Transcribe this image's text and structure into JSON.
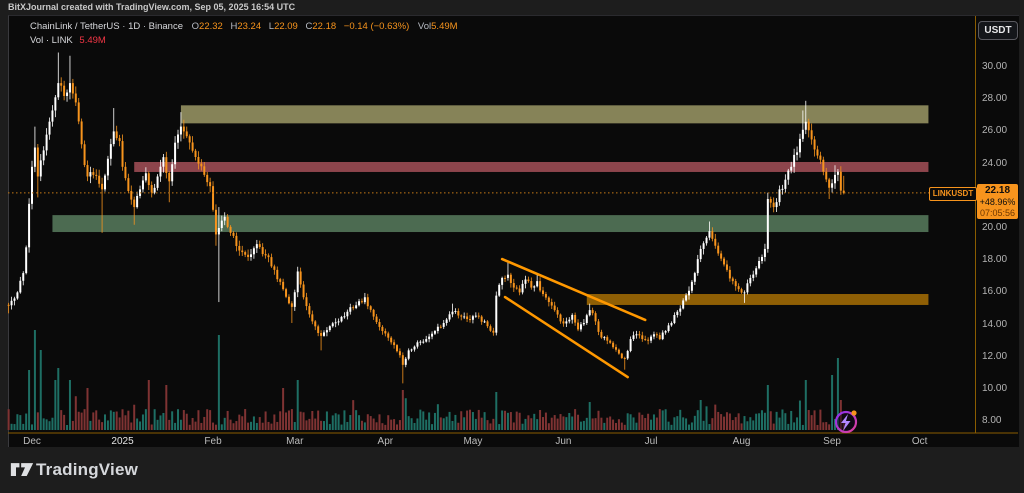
{
  "top_bar": {
    "attribution": "BitXJournal created with TradingView.com, Sep 05, 2025 16:54 UTC"
  },
  "header": {
    "symbol": "ChainLink / TetherUS",
    "separator": "·",
    "interval": "1D",
    "exchange": "Binance",
    "ohlc": {
      "o_label": "O",
      "o": "22.32",
      "h_label": "H",
      "h": "23.24",
      "l_label": "L",
      "l": "22.09",
      "c_label": "C",
      "c": "22.18",
      "change": "−0.14 (−0.63%)",
      "vol_label": "Vol",
      "vol": "5.49M"
    },
    "indicator": {
      "label": "Vol · LINK",
      "value": "5.49M"
    }
  },
  "price_axis": {
    "currency_button": "USDT",
    "last_price": "22.18",
    "change_pct": "+48.96%",
    "countdown": "07:05:56",
    "symbol_tag": "LINKUSDT"
  },
  "footer": {
    "brand": "TradingView"
  },
  "colors": {
    "up_candle": "#ffffff",
    "down_candle": "#f7941d",
    "vol_up": "#1e6f64",
    "vol_down": "#7f3333",
    "zone_olive": "#868358",
    "zone_red": "#8D454C",
    "zone_green": "#4C6B51",
    "zone_orange": "#8F5F05",
    "trendline": "#ff9800",
    "price_line": "#c77b16",
    "axis_line": "#8a5c00",
    "label_bg": "#f7941d"
  },
  "chart_data": {
    "type": "candlestick",
    "symbol": "LINKUSDT",
    "exchange": "Binance",
    "interval": "1D",
    "current_price": 22.18,
    "ylim": [
      7.5,
      31.5
    ],
    "grid": false,
    "price_ticks": [
      {
        "p": 30,
        "t": "30.00"
      },
      {
        "p": 28,
        "t": "28.00"
      },
      {
        "p": 26,
        "t": "26.00"
      },
      {
        "p": 24,
        "t": "24.00"
      },
      {
        "p": 20,
        "t": "20.00"
      },
      {
        "p": 18,
        "t": "18.00"
      },
      {
        "p": 16,
        "t": "16.00"
      },
      {
        "p": 14,
        "t": "14.00"
      },
      {
        "p": 12,
        "t": "12.00"
      },
      {
        "p": 10,
        "t": "10.00"
      },
      {
        "p": 8,
        "t": "8.00"
      }
    ],
    "time_labels": [
      {
        "label": "Dec",
        "day": 0,
        "year": false
      },
      {
        "label": "2025",
        "day": 31,
        "year": true
      },
      {
        "label": "Feb",
        "day": 62,
        "year": false
      },
      {
        "label": "Mar",
        "day": 90,
        "year": false
      },
      {
        "label": "Apr",
        "day": 121,
        "year": false
      },
      {
        "label": "May",
        "day": 151,
        "year": false
      },
      {
        "label": "Jun",
        "day": 182,
        "year": false
      },
      {
        "label": "Jul",
        "day": 212,
        "year": false
      },
      {
        "label": "Aug",
        "day": 243,
        "year": false
      },
      {
        "label": "Sep",
        "day": 274,
        "year": false
      },
      {
        "label": "Oct",
        "day": 304,
        "year": false
      }
    ],
    "epoch_note": "day 0 = 2024-12-01, one candle per day",
    "day_range": [
      -8,
      278
    ],
    "anchors": [
      [
        -8,
        15.2,
        14.7,
        null
      ],
      [
        -5,
        16.0,
        null,
        null
      ],
      [
        -3,
        17.2,
        null,
        null
      ],
      [
        -2,
        18.8,
        null,
        null
      ],
      [
        -1,
        21.5,
        null,
        null
      ],
      [
        0,
        23.8,
        null,
        null
      ],
      [
        1,
        25.0,
        null,
        26.3
      ],
      [
        2,
        23.2,
        21.9,
        null
      ],
      [
        3,
        24.2,
        null,
        null
      ],
      [
        5,
        25.8,
        null,
        null
      ],
      [
        7,
        27.3,
        null,
        null
      ],
      [
        9,
        29.0,
        null,
        30.9
      ],
      [
        11,
        28.2,
        null,
        null
      ],
      [
        13,
        29.0,
        null,
        30.7
      ],
      [
        15,
        27.8,
        null,
        null
      ],
      [
        17,
        25.2,
        null,
        null
      ],
      [
        19,
        23.2,
        null,
        null
      ],
      [
        21,
        23.3,
        null,
        null
      ],
      [
        24,
        22.4,
        19.7,
        null
      ],
      [
        26,
        24.3,
        null,
        null
      ],
      [
        28,
        26.0,
        null,
        27.45
      ],
      [
        30,
        25.4,
        null,
        null
      ],
      [
        31,
        23.8,
        null,
        null
      ],
      [
        33,
        22.3,
        null,
        null
      ],
      [
        35,
        21.3,
        20.2,
        null
      ],
      [
        37,
        22.4,
        null,
        null
      ],
      [
        39,
        23.4,
        null,
        null
      ],
      [
        41,
        22.2,
        null,
        null
      ],
      [
        43,
        23.2,
        null,
        null
      ],
      [
        45,
        24.4,
        null,
        null
      ],
      [
        47,
        22.9,
        21.6,
        null
      ],
      [
        49,
        25.3,
        null,
        null
      ],
      [
        51,
        26.3,
        null,
        27.2
      ],
      [
        53,
        25.7,
        null,
        null
      ],
      [
        55,
        24.8,
        null,
        null
      ],
      [
        57,
        24.0,
        null,
        null
      ],
      [
        59,
        23.3,
        null,
        null
      ],
      [
        61,
        22.6,
        null,
        null
      ],
      [
        63,
        19.6,
        18.9,
        null
      ],
      [
        64,
        20.0,
        15.4,
        21.3
      ],
      [
        66,
        20.7,
        null,
        null
      ],
      [
        68,
        19.7,
        null,
        null
      ],
      [
        71,
        18.6,
        null,
        null
      ],
      [
        74,
        18.2,
        null,
        null
      ],
      [
        77,
        19.0,
        null,
        null
      ],
      [
        80,
        18.3,
        null,
        null
      ],
      [
        83,
        17.4,
        null,
        null
      ],
      [
        86,
        16.2,
        null,
        null
      ],
      [
        89,
        15.1,
        14.1,
        null
      ],
      [
        91,
        17.3,
        null,
        null
      ],
      [
        93,
        15.7,
        null,
        null
      ],
      [
        96,
        14.2,
        null,
        null
      ],
      [
        99,
        13.3,
        12.4,
        null
      ],
      [
        102,
        13.9,
        null,
        null
      ],
      [
        105,
        14.2,
        null,
        null
      ],
      [
        108,
        14.8,
        null,
        null
      ],
      [
        111,
        15.2,
        null,
        null
      ],
      [
        114,
        15.7,
        null,
        null
      ],
      [
        117,
        14.5,
        null,
        null
      ],
      [
        120,
        13.6,
        null,
        null
      ],
      [
        123,
        12.9,
        null,
        null
      ],
      [
        126,
        12.1,
        null,
        null
      ],
      [
        127,
        11.5,
        10.35,
        null
      ],
      [
        129,
        12.4,
        null,
        null
      ],
      [
        132,
        12.9,
        null,
        null
      ],
      [
        135,
        13.1,
        null,
        null
      ],
      [
        138,
        13.6,
        null,
        null
      ],
      [
        141,
        14.1,
        null,
        null
      ],
      [
        144,
        14.8,
        null,
        15.3
      ],
      [
        147,
        14.5,
        null,
        null
      ],
      [
        150,
        14.3,
        null,
        null
      ],
      [
        153,
        14.5,
        null,
        null
      ],
      [
        156,
        13.9,
        null,
        null
      ],
      [
        158,
        13.5,
        null,
        null
      ],
      [
        159,
        15.8,
        null,
        null
      ],
      [
        161,
        16.9,
        null,
        null
      ],
      [
        163,
        17.1,
        null,
        17.9
      ],
      [
        165,
        16.3,
        null,
        null
      ],
      [
        167,
        16.0,
        null,
        null
      ],
      [
        169,
        16.8,
        null,
        null
      ],
      [
        171,
        16.3,
        null,
        null
      ],
      [
        173,
        16.7,
        null,
        17.2
      ],
      [
        175,
        15.9,
        null,
        null
      ],
      [
        177,
        15.4,
        null,
        null
      ],
      [
        179,
        14.9,
        null,
        null
      ],
      [
        181,
        14.2,
        null,
        null
      ],
      [
        183,
        14.2,
        null,
        null
      ],
      [
        185,
        14.6,
        null,
        null
      ],
      [
        187,
        13.7,
        null,
        null
      ],
      [
        189,
        14.1,
        null,
        null
      ],
      [
        191,
        14.9,
        null,
        15.3
      ],
      [
        193,
        14.2,
        null,
        null
      ],
      [
        195,
        13.2,
        null,
        null
      ],
      [
        197,
        13.0,
        null,
        null
      ],
      [
        199,
        12.6,
        null,
        null
      ],
      [
        201,
        12.2,
        null,
        null
      ],
      [
        203,
        11.9,
        11.2,
        null
      ],
      [
        205,
        13.1,
        null,
        null
      ],
      [
        207,
        13.4,
        null,
        null
      ],
      [
        209,
        13.1,
        null,
        null
      ],
      [
        211,
        13.0,
        null,
        null
      ],
      [
        213,
        13.4,
        null,
        null
      ],
      [
        215,
        13.1,
        null,
        null
      ],
      [
        217,
        13.6,
        null,
        null
      ],
      [
        219,
        14.1,
        null,
        null
      ],
      [
        221,
        14.8,
        null,
        null
      ],
      [
        223,
        15.5,
        null,
        null
      ],
      [
        225,
        16.1,
        null,
        null
      ],
      [
        227,
        17.2,
        null,
        null
      ],
      [
        229,
        18.7,
        null,
        null
      ],
      [
        231,
        19.4,
        null,
        null
      ],
      [
        232,
        19.8,
        null,
        20.4
      ],
      [
        234,
        18.9,
        null,
        null
      ],
      [
        236,
        18.1,
        null,
        null
      ],
      [
        238,
        17.4,
        null,
        null
      ],
      [
        240,
        16.7,
        null,
        null
      ],
      [
        242,
        16.2,
        null,
        null
      ],
      [
        244,
        16.0,
        15.35,
        null
      ],
      [
        246,
        16.9,
        null,
        null
      ],
      [
        248,
        17.5,
        null,
        null
      ],
      [
        250,
        18.2,
        null,
        null
      ],
      [
        251,
        18.7,
        null,
        null
      ],
      [
        252,
        21.8,
        null,
        null
      ],
      [
        254,
        21.3,
        null,
        null
      ],
      [
        256,
        22.4,
        null,
        null
      ],
      [
        258,
        23.0,
        null,
        null
      ],
      [
        260,
        23.8,
        null,
        null
      ],
      [
        262,
        24.7,
        null,
        null
      ],
      [
        264,
        26.1,
        null,
        27.3
      ],
      [
        265,
        26.6,
        null,
        27.9
      ],
      [
        267,
        25.5,
        null,
        null
      ],
      [
        269,
        24.5,
        null,
        null
      ],
      [
        271,
        23.5,
        null,
        null
      ],
      [
        273,
        22.5,
        21.8,
        null
      ],
      [
        275,
        23.3,
        null,
        23.9
      ],
      [
        276,
        23.5,
        null,
        null
      ],
      [
        277,
        22.32,
        null,
        null
      ],
      [
        278,
        22.18,
        null,
        null
      ]
    ],
    "last_candle": {
      "o": 22.32,
      "h": 23.24,
      "l": 22.09,
      "c": 22.18
    },
    "zones": [
      {
        "name": "supply-zone-olive",
        "color": "#868358",
        "day_start": 51,
        "day_end": 307,
        "price_low": 26.5,
        "price_high": 27.62
      },
      {
        "name": "resistance-zone-red",
        "color": "#8D454C",
        "day_start": 35,
        "day_end": 307,
        "price_low": 23.48,
        "price_high": 24.1
      },
      {
        "name": "support-zone-green",
        "color": "#4C6B51",
        "day_start": 7,
        "day_end": 307,
        "price_low": 19.75,
        "price_high": 20.8
      },
      {
        "name": "demand-zone-orange",
        "color": "#8F5F05",
        "day_start": 190,
        "day_end": 307,
        "price_low": 15.22,
        "price_high": 15.9
      }
    ],
    "trendlines": [
      {
        "name": "falling-wedge-upper",
        "from": [
          161,
          18.07
        ],
        "to": [
          210,
          14.29
        ]
      },
      {
        "name": "falling-wedge-lower",
        "from": [
          162,
          15.71
        ],
        "to": [
          204,
          10.74
        ]
      }
    ],
    "volume_spikes": [
      [
        -1,
        0.6
      ],
      [
        1,
        1.0
      ],
      [
        3,
        0.8
      ],
      [
        8,
        0.5
      ],
      [
        9,
        0.62
      ],
      [
        13,
        0.5
      ],
      [
        19,
        0.42
      ],
      [
        40,
        0.5
      ],
      [
        46,
        0.45
      ],
      [
        64,
        0.95
      ],
      [
        86,
        0.42
      ],
      [
        91,
        0.5
      ],
      [
        127,
        0.4
      ],
      [
        159,
        0.38
      ],
      [
        191,
        0.28
      ],
      [
        229,
        0.3
      ],
      [
        252,
        0.45
      ],
      [
        265,
        0.5
      ],
      [
        274,
        0.55
      ],
      [
        276,
        0.72
      ],
      [
        277,
        0.3
      ]
    ]
  }
}
